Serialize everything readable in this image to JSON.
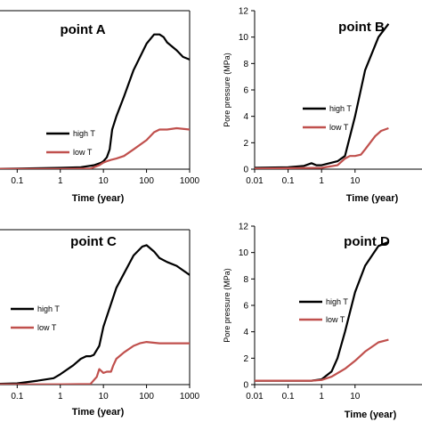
{
  "chart_data": [
    {
      "type": "line",
      "title": "point A",
      "xlabel": "Time (year)",
      "ylabel": "",
      "x_scale": "log",
      "xlim": [
        0.03,
        1000
      ],
      "ylim": [
        0,
        12
      ],
      "x_ticks": [
        "0.1",
        "1",
        "10",
        "100",
        "1000"
      ],
      "y_ticks": [],
      "series": [
        {
          "name": "high T",
          "color": "#000000",
          "x": [
            0.03,
            0.1,
            1,
            3,
            6,
            9,
            10,
            12,
            14,
            16,
            20,
            30,
            50,
            100,
            150,
            200,
            250,
            300,
            500,
            700,
            1000
          ],
          "y": [
            0.02,
            0.05,
            0.1,
            0.15,
            0.3,
            0.5,
            0.6,
            0.9,
            1.5,
            3.0,
            4.0,
            5.5,
            7.5,
            9.5,
            10.2,
            10.2,
            10.0,
            9.6,
            9.0,
            8.5,
            8.3
          ]
        },
        {
          "name": "low T",
          "color": "#c0504d",
          "x": [
            0.03,
            1,
            5,
            8,
            10,
            12,
            15,
            20,
            30,
            50,
            100,
            150,
            200,
            300,
            500,
            1000
          ],
          "y": [
            0.02,
            0.02,
            0.05,
            0.3,
            0.5,
            0.6,
            0.7,
            0.8,
            1.0,
            1.5,
            2.2,
            2.8,
            3.0,
            3.0,
            3.1,
            3.0
          ]
        }
      ]
    },
    {
      "type": "line",
      "title": "point B",
      "xlabel": "Time (year)",
      "ylabel": "Pore pressure (MPa)",
      "x_scale": "log",
      "xlim": [
        0.01,
        1000
      ],
      "ylim": [
        0,
        12
      ],
      "x_ticks": [
        "0.01",
        "0.1",
        "1",
        "10"
      ],
      "y_ticks": [
        "0",
        "2",
        "4",
        "6",
        "8",
        "10",
        "12"
      ],
      "series": [
        {
          "name": "high T",
          "color": "#000000",
          "x": [
            0.01,
            0.1,
            0.3,
            0.5,
            0.7,
            1,
            3,
            5,
            10,
            20,
            50,
            100
          ],
          "y": [
            0.1,
            0.15,
            0.25,
            0.45,
            0.3,
            0.3,
            0.6,
            1.0,
            4.0,
            7.5,
            10.0,
            11.0
          ]
        },
        {
          "name": "low T",
          "color": "#c0504d",
          "x": [
            0.01,
            1,
            3,
            5,
            7,
            10,
            15,
            20,
            40,
            60,
            100
          ],
          "y": [
            0.05,
            0.1,
            0.3,
            0.8,
            1.0,
            1.0,
            1.1,
            1.5,
            2.5,
            2.9,
            3.1
          ]
        }
      ]
    },
    {
      "type": "line",
      "title": "point C",
      "xlabel": "Time (year)",
      "ylabel": "",
      "x_scale": "log",
      "xlim": [
        0.03,
        1000
      ],
      "ylim": [
        0,
        12
      ],
      "x_ticks": [
        "0.1",
        "1",
        "10",
        "100",
        "1000"
      ],
      "y_ticks": [],
      "series": [
        {
          "name": "high T",
          "color": "#000000",
          "x": [
            0.03,
            0.1,
            0.3,
            0.7,
            1,
            2,
            3,
            4,
            5,
            6,
            8,
            10,
            20,
            50,
            80,
            100,
            150,
            200,
            300,
            500,
            1000
          ],
          "y": [
            0.05,
            0.1,
            0.3,
            0.5,
            0.8,
            1.5,
            2.0,
            2.2,
            2.2,
            2.3,
            3.0,
            4.5,
            7.5,
            10.0,
            10.7,
            10.8,
            10.3,
            9.8,
            9.5,
            9.2,
            8.5
          ]
        },
        {
          "name": "low T",
          "color": "#c0504d",
          "x": [
            0.03,
            1,
            5,
            7,
            8,
            10,
            12,
            15,
            17,
            20,
            30,
            50,
            70,
            100,
            200,
            500,
            1000
          ],
          "y": [
            0.02,
            0.02,
            0.05,
            0.6,
            1.2,
            0.9,
            1.0,
            1.0,
            1.5,
            2.0,
            2.5,
            3.0,
            3.2,
            3.3,
            3.2,
            3.2,
            3.2
          ]
        }
      ]
    },
    {
      "type": "line",
      "title": "point D",
      "xlabel": "Time (year)",
      "ylabel": "Pore pressure (MPa)",
      "x_scale": "log",
      "xlim": [
        0.01,
        1000
      ],
      "ylim": [
        0,
        12
      ],
      "x_ticks": [
        "0.01",
        "0.1",
        "1",
        "10"
      ],
      "y_ticks": [
        "0",
        "2",
        "4",
        "6",
        "8",
        "10",
        "12"
      ],
      "series": [
        {
          "name": "high T",
          "color": "#000000",
          "x": [
            0.01,
            0.1,
            0.5,
            1,
            2,
            3,
            5,
            10,
            20,
            50,
            100
          ],
          "y": [
            0.3,
            0.3,
            0.3,
            0.4,
            1.0,
            2.0,
            4.0,
            7.0,
            9.0,
            10.5,
            10.8
          ]
        },
        {
          "name": "low T",
          "color": "#c0504d",
          "x": [
            0.01,
            0.5,
            1,
            2,
            5,
            10,
            20,
            50,
            100
          ],
          "y": [
            0.3,
            0.3,
            0.35,
            0.6,
            1.2,
            1.8,
            2.5,
            3.2,
            3.4
          ]
        }
      ]
    }
  ]
}
